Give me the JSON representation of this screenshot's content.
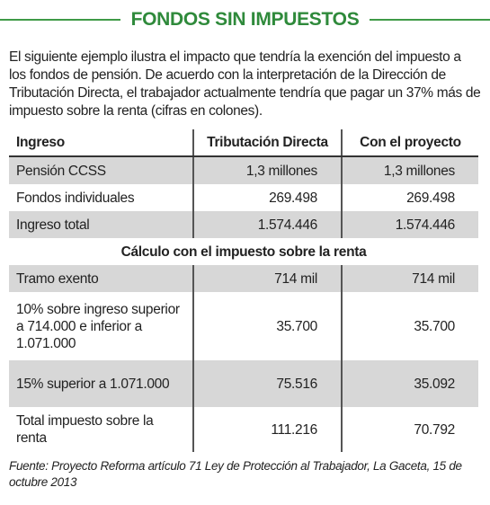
{
  "title": "FONDOS SIN IMPUESTOS",
  "intro": "El siguiente ejemplo ilustra el impacto que tendría la exención del impuesto a los fondos de pensión. De acuerdo con la interpretación de la Dirección de Tributación Directa, el trabajador actualmente tendría que pagar un 37% más de impuesto sobre la renta (cifras en colones).",
  "table": {
    "header": [
      "Ingreso",
      "Tributación Directa",
      "Con el proyecto"
    ],
    "rows": [
      [
        "Pensión CCSS",
        "1,3 millones",
        "1,3 millones"
      ],
      [
        "Fondos individuales",
        "269.498",
        "269.498"
      ],
      [
        "Ingreso total",
        "1.574.446",
        "1.574.446"
      ]
    ],
    "section": "Cálculo con el impuesto sobre la renta",
    "section_rows": [
      [
        "Tramo exento",
        "714 mil",
        "714 mil"
      ],
      [
        "10% sobre ingreso superior a 714.000 e inferior a 1.071.000",
        "35.700",
        "35.700"
      ],
      [
        "15% superior a 1.071.000",
        "75.516",
        "35.092"
      ],
      [
        "Total impuesto sobre la renta",
        "111.216",
        "70.792"
      ]
    ]
  },
  "source": "Fuente: Proyecto Reforma artículo 71 Ley de Protección al Trabajador, La Gaceta, 15 de octubre 2013"
}
